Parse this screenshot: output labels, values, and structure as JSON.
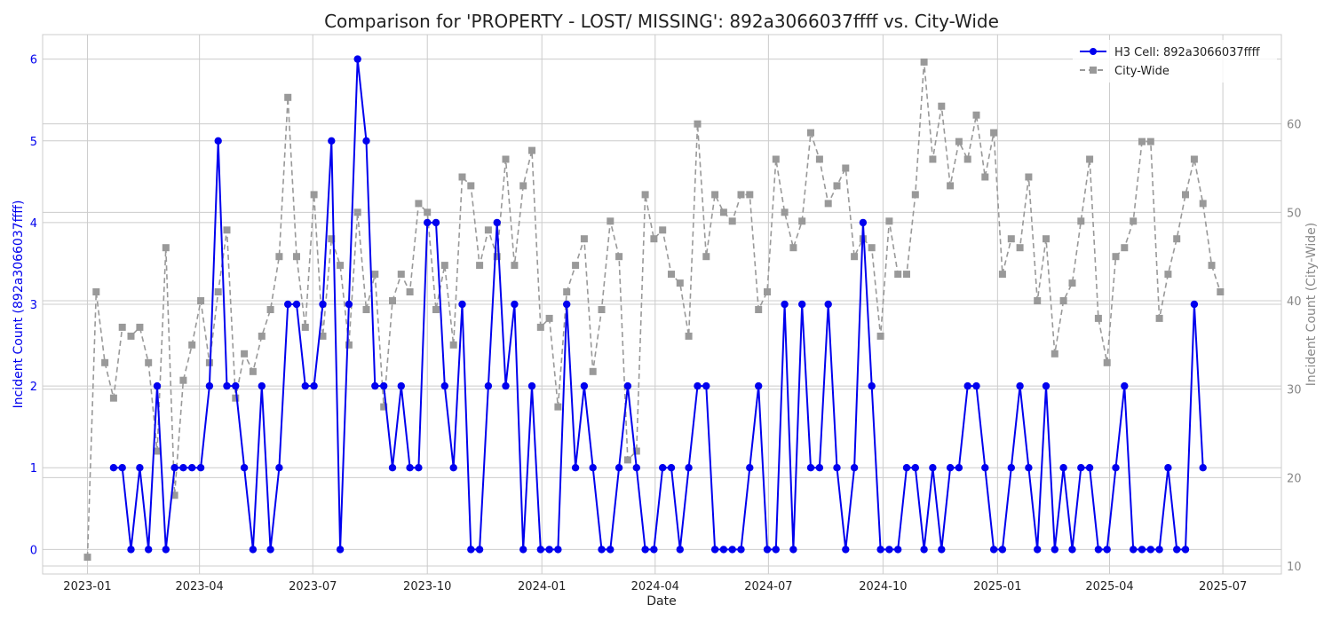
{
  "chart_data": {
    "type": "line",
    "title": "Comparison for 'PROPERTY - LOST/ MISSING': 892a3066037ffff vs. City-Wide",
    "xlabel": "Date",
    "ylabel_left": "Incident Count (892a3066037ffff)",
    "ylabel_right": "Incident Count (City-Wide)",
    "x_range": [
      "2022-11-26",
      "2025-08-17"
    ],
    "ylim_left": [
      -0.3,
      6.3
    ],
    "ylim_right": [
      9.1,
      70.1
    ],
    "grid": true,
    "legend_position": "top-right",
    "x_ticks": [
      "2023-01",
      "2023-04",
      "2023-07",
      "2023-10",
      "2024-01",
      "2024-04",
      "2024-07",
      "2024-10",
      "2025-01",
      "2025-04",
      "2025-07"
    ],
    "y_ticks_left": [
      0,
      1,
      2,
      3,
      4,
      5,
      6
    ],
    "y_ticks_right": [
      10,
      20,
      30,
      40,
      50,
      60
    ],
    "series": [
      {
        "name": "H3 Cell: 892a3066037ffff",
        "color": "#0000ee",
        "axis": "left",
        "marker": "circle",
        "line_style": "solid",
        "points": [
          [
            "2023-01-22",
            1
          ],
          [
            "2023-01-29",
            1
          ],
          [
            "2023-02-05",
            0
          ],
          [
            "2023-02-12",
            1
          ],
          [
            "2023-02-19",
            0
          ],
          [
            "2023-02-26",
            2
          ],
          [
            "2023-03-05",
            0
          ],
          [
            "2023-03-12",
            1
          ],
          [
            "2023-03-19",
            1
          ],
          [
            "2023-03-26",
            1
          ],
          [
            "2023-04-02",
            1
          ],
          [
            "2023-04-09",
            2
          ],
          [
            "2023-04-16",
            5
          ],
          [
            "2023-04-23",
            2
          ],
          [
            "2023-04-30",
            2
          ],
          [
            "2023-05-07",
            1
          ],
          [
            "2023-05-14",
            0
          ],
          [
            "2023-05-21",
            2
          ],
          [
            "2023-05-28",
            0
          ],
          [
            "2023-06-04",
            1
          ],
          [
            "2023-06-11",
            3
          ],
          [
            "2023-06-18",
            3
          ],
          [
            "2023-06-25",
            2
          ],
          [
            "2023-07-02",
            2
          ],
          [
            "2023-07-09",
            3
          ],
          [
            "2023-07-16",
            5
          ],
          [
            "2023-07-23",
            0
          ],
          [
            "2023-07-30",
            3
          ],
          [
            "2023-08-06",
            6
          ],
          [
            "2023-08-13",
            5
          ],
          [
            "2023-08-20",
            2
          ],
          [
            "2023-08-27",
            2
          ],
          [
            "2023-09-03",
            1
          ],
          [
            "2023-09-10",
            2
          ],
          [
            "2023-09-17",
            1
          ],
          [
            "2023-09-24",
            1
          ],
          [
            "2023-10-01",
            4
          ],
          [
            "2023-10-08",
            4
          ],
          [
            "2023-10-15",
            2
          ],
          [
            "2023-10-22",
            1
          ],
          [
            "2023-10-29",
            3
          ],
          [
            "2023-11-05",
            0
          ],
          [
            "2023-11-12",
            0
          ],
          [
            "2023-11-19",
            2
          ],
          [
            "2023-11-26",
            4
          ],
          [
            "2023-12-03",
            2
          ],
          [
            "2023-12-10",
            3
          ],
          [
            "2023-12-17",
            0
          ],
          [
            "2023-12-24",
            2
          ],
          [
            "2023-12-31",
            0
          ],
          [
            "2024-01-07",
            0
          ],
          [
            "2024-01-14",
            0
          ],
          [
            "2024-01-21",
            3
          ],
          [
            "2024-01-28",
            1
          ],
          [
            "2024-02-04",
            2
          ],
          [
            "2024-02-11",
            1
          ],
          [
            "2024-02-18",
            0
          ],
          [
            "2024-02-25",
            0
          ],
          [
            "2024-03-03",
            1
          ],
          [
            "2024-03-10",
            2
          ],
          [
            "2024-03-17",
            1
          ],
          [
            "2024-03-24",
            0
          ],
          [
            "2024-03-31",
            0
          ],
          [
            "2024-04-07",
            1
          ],
          [
            "2024-04-14",
            1
          ],
          [
            "2024-04-21",
            0
          ],
          [
            "2024-04-28",
            1
          ],
          [
            "2024-05-05",
            2
          ],
          [
            "2024-05-12",
            2
          ],
          [
            "2024-05-19",
            0
          ],
          [
            "2024-05-26",
            0
          ],
          [
            "2024-06-02",
            0
          ],
          [
            "2024-06-09",
            0
          ],
          [
            "2024-06-16",
            1
          ],
          [
            "2024-06-23",
            2
          ],
          [
            "2024-06-30",
            0
          ],
          [
            "2024-07-07",
            0
          ],
          [
            "2024-07-14",
            3
          ],
          [
            "2024-07-21",
            0
          ],
          [
            "2024-07-28",
            3
          ],
          [
            "2024-08-04",
            1
          ],
          [
            "2024-08-11",
            1
          ],
          [
            "2024-08-18",
            3
          ],
          [
            "2024-08-25",
            1
          ],
          [
            "2024-09-01",
            0
          ],
          [
            "2024-09-08",
            1
          ],
          [
            "2024-09-15",
            4
          ],
          [
            "2024-09-22",
            2
          ],
          [
            "2024-09-29",
            0
          ],
          [
            "2024-10-06",
            0
          ],
          [
            "2024-10-13",
            0
          ],
          [
            "2024-10-20",
            1
          ],
          [
            "2024-10-27",
            1
          ],
          [
            "2024-11-03",
            0
          ],
          [
            "2024-11-10",
            1
          ],
          [
            "2024-11-17",
            0
          ],
          [
            "2024-11-24",
            1
          ],
          [
            "2024-12-01",
            1
          ],
          [
            "2024-12-08",
            2
          ],
          [
            "2024-12-15",
            2
          ],
          [
            "2024-12-22",
            1
          ],
          [
            "2024-12-29",
            0
          ],
          [
            "2025-01-05",
            0
          ],
          [
            "2025-01-12",
            1
          ],
          [
            "2025-01-19",
            2
          ],
          [
            "2025-01-26",
            1
          ],
          [
            "2025-02-02",
            0
          ],
          [
            "2025-02-09",
            2
          ],
          [
            "2025-02-16",
            0
          ],
          [
            "2025-02-23",
            1
          ],
          [
            "2025-03-02",
            0
          ],
          [
            "2025-03-09",
            1
          ],
          [
            "2025-03-16",
            1
          ],
          [
            "2025-03-23",
            0
          ],
          [
            "2025-03-30",
            0
          ],
          [
            "2025-04-06",
            1
          ],
          [
            "2025-04-13",
            2
          ],
          [
            "2025-04-20",
            0
          ],
          [
            "2025-04-27",
            0
          ],
          [
            "2025-05-04",
            0
          ],
          [
            "2025-05-11",
            0
          ],
          [
            "2025-05-18",
            1
          ],
          [
            "2025-05-25",
            0
          ],
          [
            "2025-06-01",
            0
          ],
          [
            "2025-06-08",
            3
          ],
          [
            "2025-06-15",
            1
          ]
        ]
      },
      {
        "name": "City-Wide",
        "color": "#999999",
        "axis": "right",
        "marker": "square",
        "line_style": "dashed",
        "points": [
          [
            "2023-01-01",
            11
          ],
          [
            "2023-01-08",
            41
          ],
          [
            "2023-01-15",
            33
          ],
          [
            "2023-01-22",
            29
          ],
          [
            "2023-01-29",
            37
          ],
          [
            "2023-02-05",
            36
          ],
          [
            "2023-02-12",
            37
          ],
          [
            "2023-02-19",
            33
          ],
          [
            "2023-02-26",
            23
          ],
          [
            "2023-03-05",
            46
          ],
          [
            "2023-03-12",
            18
          ],
          [
            "2023-03-19",
            31
          ],
          [
            "2023-03-26",
            35
          ],
          [
            "2023-04-02",
            40
          ],
          [
            "2023-04-09",
            33
          ],
          [
            "2023-04-16",
            41
          ],
          [
            "2023-04-23",
            48
          ],
          [
            "2023-04-30",
            29
          ],
          [
            "2023-05-07",
            34
          ],
          [
            "2023-05-14",
            32
          ],
          [
            "2023-05-21",
            36
          ],
          [
            "2023-05-28",
            39
          ],
          [
            "2023-06-04",
            45
          ],
          [
            "2023-06-11",
            63
          ],
          [
            "2023-06-18",
            45
          ],
          [
            "2023-06-25",
            37
          ],
          [
            "2023-07-02",
            52
          ],
          [
            "2023-07-09",
            36
          ],
          [
            "2023-07-16",
            47
          ],
          [
            "2023-07-23",
            44
          ],
          [
            "2023-07-30",
            35
          ],
          [
            "2023-08-06",
            50
          ],
          [
            "2023-08-13",
            39
          ],
          [
            "2023-08-20",
            43
          ],
          [
            "2023-08-27",
            28
          ],
          [
            "2023-09-03",
            40
          ],
          [
            "2023-09-10",
            43
          ],
          [
            "2023-09-17",
            41
          ],
          [
            "2023-09-24",
            51
          ],
          [
            "2023-10-01",
            50
          ],
          [
            "2023-10-08",
            39
          ],
          [
            "2023-10-15",
            44
          ],
          [
            "2023-10-22",
            35
          ],
          [
            "2023-10-29",
            54
          ],
          [
            "2023-11-05",
            53
          ],
          [
            "2023-11-12",
            44
          ],
          [
            "2023-11-19",
            48
          ],
          [
            "2023-11-26",
            45
          ],
          [
            "2023-12-03",
            56
          ],
          [
            "2023-12-10",
            44
          ],
          [
            "2023-12-17",
            53
          ],
          [
            "2023-12-24",
            57
          ],
          [
            "2023-12-31",
            37
          ],
          [
            "2024-01-07",
            38
          ],
          [
            "2024-01-14",
            28
          ],
          [
            "2024-01-21",
            41
          ],
          [
            "2024-01-28",
            44
          ],
          [
            "2024-02-04",
            47
          ],
          [
            "2024-02-11",
            32
          ],
          [
            "2024-02-18",
            39
          ],
          [
            "2024-02-25",
            49
          ],
          [
            "2024-03-03",
            45
          ],
          [
            "2024-03-10",
            22
          ],
          [
            "2024-03-17",
            23
          ],
          [
            "2024-03-24",
            52
          ],
          [
            "2024-03-31",
            47
          ],
          [
            "2024-04-07",
            48
          ],
          [
            "2024-04-14",
            43
          ],
          [
            "2024-04-21",
            42
          ],
          [
            "2024-04-28",
            36
          ],
          [
            "2024-05-05",
            60
          ],
          [
            "2024-05-12",
            45
          ],
          [
            "2024-05-19",
            52
          ],
          [
            "2024-05-26",
            50
          ],
          [
            "2024-06-02",
            49
          ],
          [
            "2024-06-09",
            52
          ],
          [
            "2024-06-16",
            52
          ],
          [
            "2024-06-23",
            39
          ],
          [
            "2024-06-30",
            41
          ],
          [
            "2024-07-07",
            56
          ],
          [
            "2024-07-14",
            50
          ],
          [
            "2024-07-21",
            46
          ],
          [
            "2024-07-28",
            49
          ],
          [
            "2024-08-04",
            59
          ],
          [
            "2024-08-11",
            56
          ],
          [
            "2024-08-18",
            51
          ],
          [
            "2024-08-25",
            53
          ],
          [
            "2024-09-01",
            55
          ],
          [
            "2024-09-08",
            45
          ],
          [
            "2024-09-15",
            47
          ],
          [
            "2024-09-22",
            46
          ],
          [
            "2024-09-29",
            36
          ],
          [
            "2024-10-06",
            49
          ],
          [
            "2024-10-13",
            43
          ],
          [
            "2024-10-20",
            43
          ],
          [
            "2024-10-27",
            52
          ],
          [
            "2024-11-03",
            67
          ],
          [
            "2024-11-10",
            56
          ],
          [
            "2024-11-17",
            62
          ],
          [
            "2024-11-24",
            53
          ],
          [
            "2024-12-01",
            58
          ],
          [
            "2024-12-08",
            56
          ],
          [
            "2024-12-15",
            61
          ],
          [
            "2024-12-22",
            54
          ],
          [
            "2024-12-29",
            59
          ],
          [
            "2025-01-05",
            43
          ],
          [
            "2025-01-12",
            47
          ],
          [
            "2025-01-19",
            46
          ],
          [
            "2025-01-26",
            54
          ],
          [
            "2025-02-02",
            40
          ],
          [
            "2025-02-09",
            47
          ],
          [
            "2025-02-16",
            34
          ],
          [
            "2025-02-23",
            40
          ],
          [
            "2025-03-02",
            42
          ],
          [
            "2025-03-09",
            49
          ],
          [
            "2025-03-16",
            56
          ],
          [
            "2025-03-23",
            38
          ],
          [
            "2025-03-30",
            33
          ],
          [
            "2025-04-06",
            45
          ],
          [
            "2025-04-13",
            46
          ],
          [
            "2025-04-20",
            49
          ],
          [
            "2025-04-27",
            58
          ],
          [
            "2025-05-04",
            58
          ],
          [
            "2025-05-11",
            38
          ],
          [
            "2025-05-18",
            43
          ],
          [
            "2025-05-25",
            47
          ],
          [
            "2025-06-01",
            52
          ],
          [
            "2025-06-08",
            56
          ],
          [
            "2025-06-15",
            51
          ],
          [
            "2025-06-22",
            44
          ],
          [
            "2025-06-29",
            41
          ]
        ]
      }
    ]
  }
}
